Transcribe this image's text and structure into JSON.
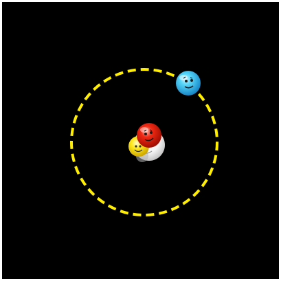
{
  "scene": {
    "background_color": "#000000",
    "orbit_color": "#ffee00"
  },
  "bodies": {
    "center_yellow_ball": {
      "color": "#ffe600",
      "face": "smiley"
    },
    "center_white_ball": {
      "color": "#ffffff",
      "face": "smiley"
    },
    "center_red_ball": {
      "color": "#e02010",
      "face": "smiley"
    },
    "orbiting_blue_ball": {
      "color": "#3ec8f0",
      "face": "smiley"
    }
  }
}
